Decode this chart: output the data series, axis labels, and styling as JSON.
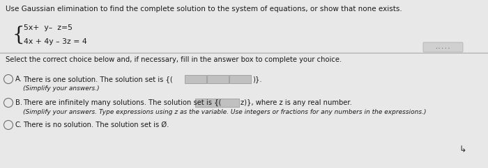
{
  "background_color": "#e8e8e8",
  "title_text": "Use Gaussian elimination to find the complete solution to the system of equations, or show that none exists.",
  "eq1": "5x+  y–  z=5",
  "eq2": "4x + 4y – 3z = 4",
  "select_text": "Select the correct choice below and, if necessary, fill in the answer box to complete your choice.",
  "option_A_pre": "There is one solution. The solution set is {(",
  "option_A_post": ")}.",
  "option_A_note": "(Simplify your answers.)",
  "option_B_pre": "There are infinitely many solutions. The solution set is {(",
  "option_B_mid": "z)}, where z is any real number.",
  "option_B_note": "(Simplify your answers. Type expressions using z as the variable. Use integers or fractions for any numbers in the expressions.)",
  "option_C_text": "There is no solution. The solution set is Ø.",
  "text_color": "#1a1a1a",
  "box_fill": "#c0c0c0",
  "box_edge": "#909090",
  "circle_fill": "#e8e8e8",
  "circle_edge": "#707070",
  "divider_color": "#aaaaaa",
  "dots_text": ".....",
  "font_size_title": 7.5,
  "font_size_body": 7.2,
  "font_size_eq": 7.8,
  "font_size_small": 6.5
}
